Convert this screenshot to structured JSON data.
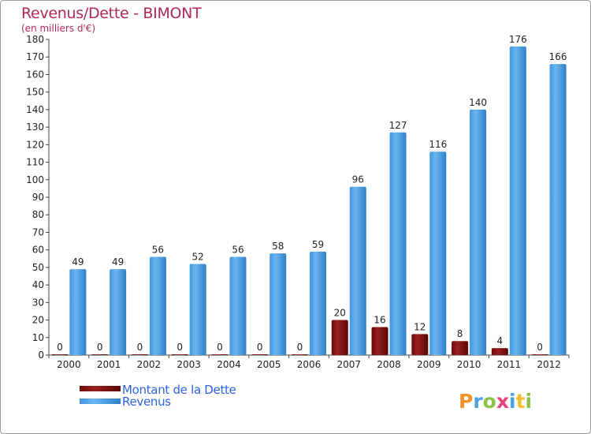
{
  "chart_data": {
    "type": "bar",
    "title": "Revenus/Dette - BIMONT",
    "subtitle": "(en milliers d'€)",
    "categories": [
      "2000",
      "2001",
      "2002",
      "2003",
      "2004",
      "2005",
      "2006",
      "2007",
      "2008",
      "2009",
      "2010",
      "2011",
      "2012"
    ],
    "series": [
      {
        "name": "Montant de la Dette",
        "color": "#7a0c0c",
        "values": [
          0,
          0,
          0,
          0,
          0,
          0,
          0,
          20,
          16,
          12,
          8,
          4,
          0
        ]
      },
      {
        "name": "Revenus",
        "color": "#4aa1e6",
        "values": [
          49,
          49,
          56,
          52,
          56,
          58,
          59,
          96,
          127,
          116,
          140,
          176,
          166
        ]
      }
    ],
    "ylim": [
      0,
      180
    ],
    "ytick_step": 10,
    "grid": false,
    "legend": "bottom-left"
  },
  "brand": {
    "name": "Proxiti"
  }
}
